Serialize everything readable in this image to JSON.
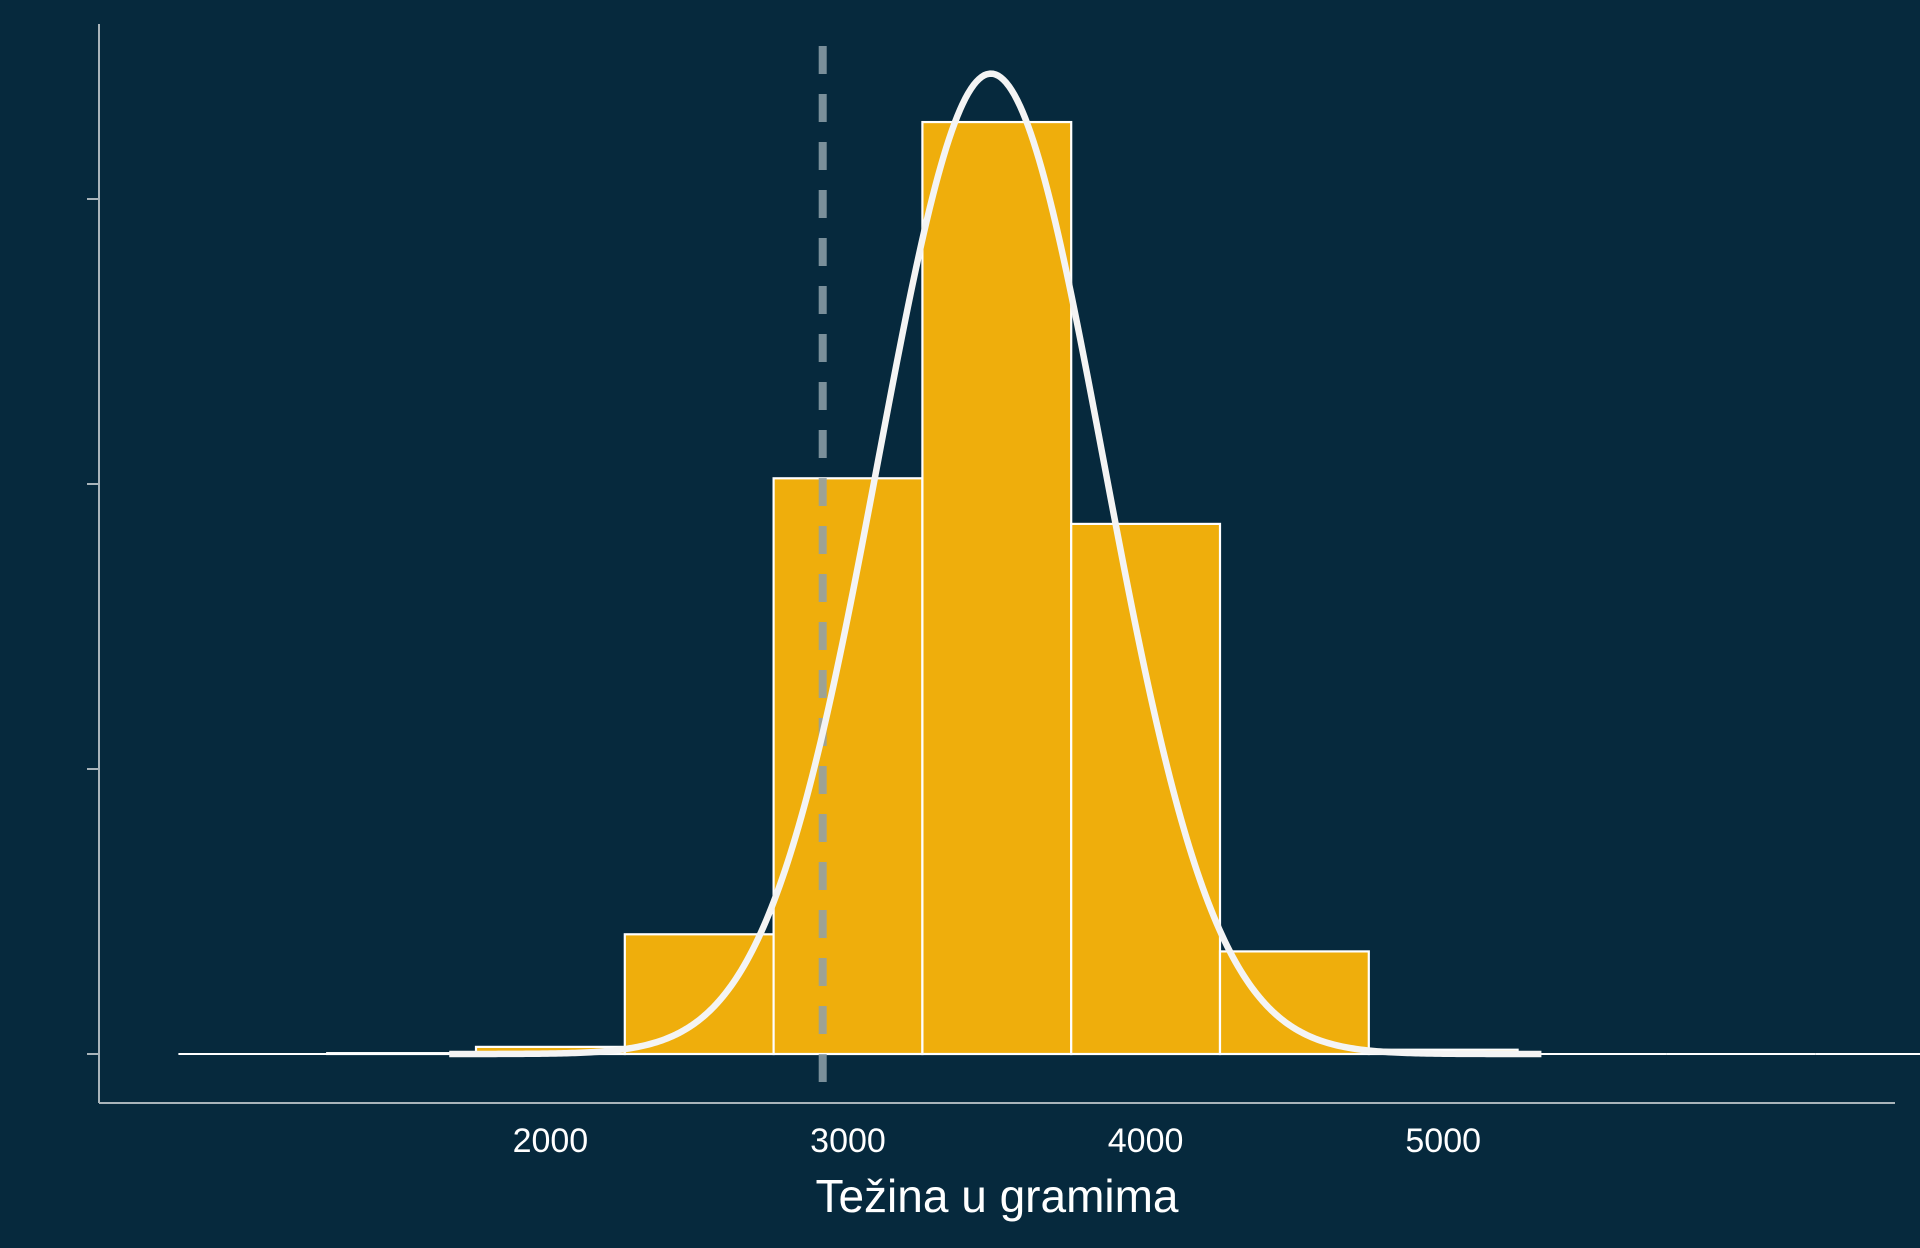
{
  "chart_data": {
    "type": "bar",
    "subtype": "histogram",
    "xlabel": "Težina u gramima",
    "ylabel": "",
    "title": "",
    "x_ticks": [
      2000,
      3000,
      4000,
      5000
    ],
    "x_tick_labels": [
      "2000",
      "3000",
      "4000",
      "5000"
    ],
    "y_ticks": [
      0,
      1,
      2,
      3
    ],
    "xlim": [
      1220,
      6600
    ],
    "ylim": [
      -0.17,
      3.7
    ],
    "bin_width": 500,
    "bins": [
      {
        "start": 750,
        "end": 1250,
        "value": 0
      },
      {
        "start": 1250,
        "end": 1750,
        "value": 0.003
      },
      {
        "start": 1750,
        "end": 2250,
        "value": 0.025
      },
      {
        "start": 2250,
        "end": 2750,
        "value": 0.42
      },
      {
        "start": 2750,
        "end": 3250,
        "value": 2.02
      },
      {
        "start": 3250,
        "end": 3750,
        "value": 3.27
      },
      {
        "start": 3750,
        "end": 4250,
        "value": 1.86
      },
      {
        "start": 4250,
        "end": 4750,
        "value": 0.36
      },
      {
        "start": 4750,
        "end": 5250,
        "value": 0.015
      },
      {
        "start": 5250,
        "end": 5750,
        "value": 0.001
      },
      {
        "start": 5750,
        "end": 6250,
        "value": 0
      },
      {
        "start": 6250,
        "end": 6750,
        "value": 0
      }
    ],
    "normal_curve": {
      "mean": 3480,
      "sd": 378,
      "peak": 3.44,
      "x_range": [
        1660,
        5330
      ]
    },
    "reference_line": {
      "x": 2915,
      "style": "dashed"
    },
    "grid": false,
    "legend": "none",
    "colors": {
      "background": "#06293d",
      "bar_fill": "#efae0c",
      "bar_edge": "#ffffff",
      "curve": "#f4f4f4",
      "reference_line": "#8fa1ab",
      "axis": "#a9b4ba",
      "text": "#ffffff"
    }
  }
}
